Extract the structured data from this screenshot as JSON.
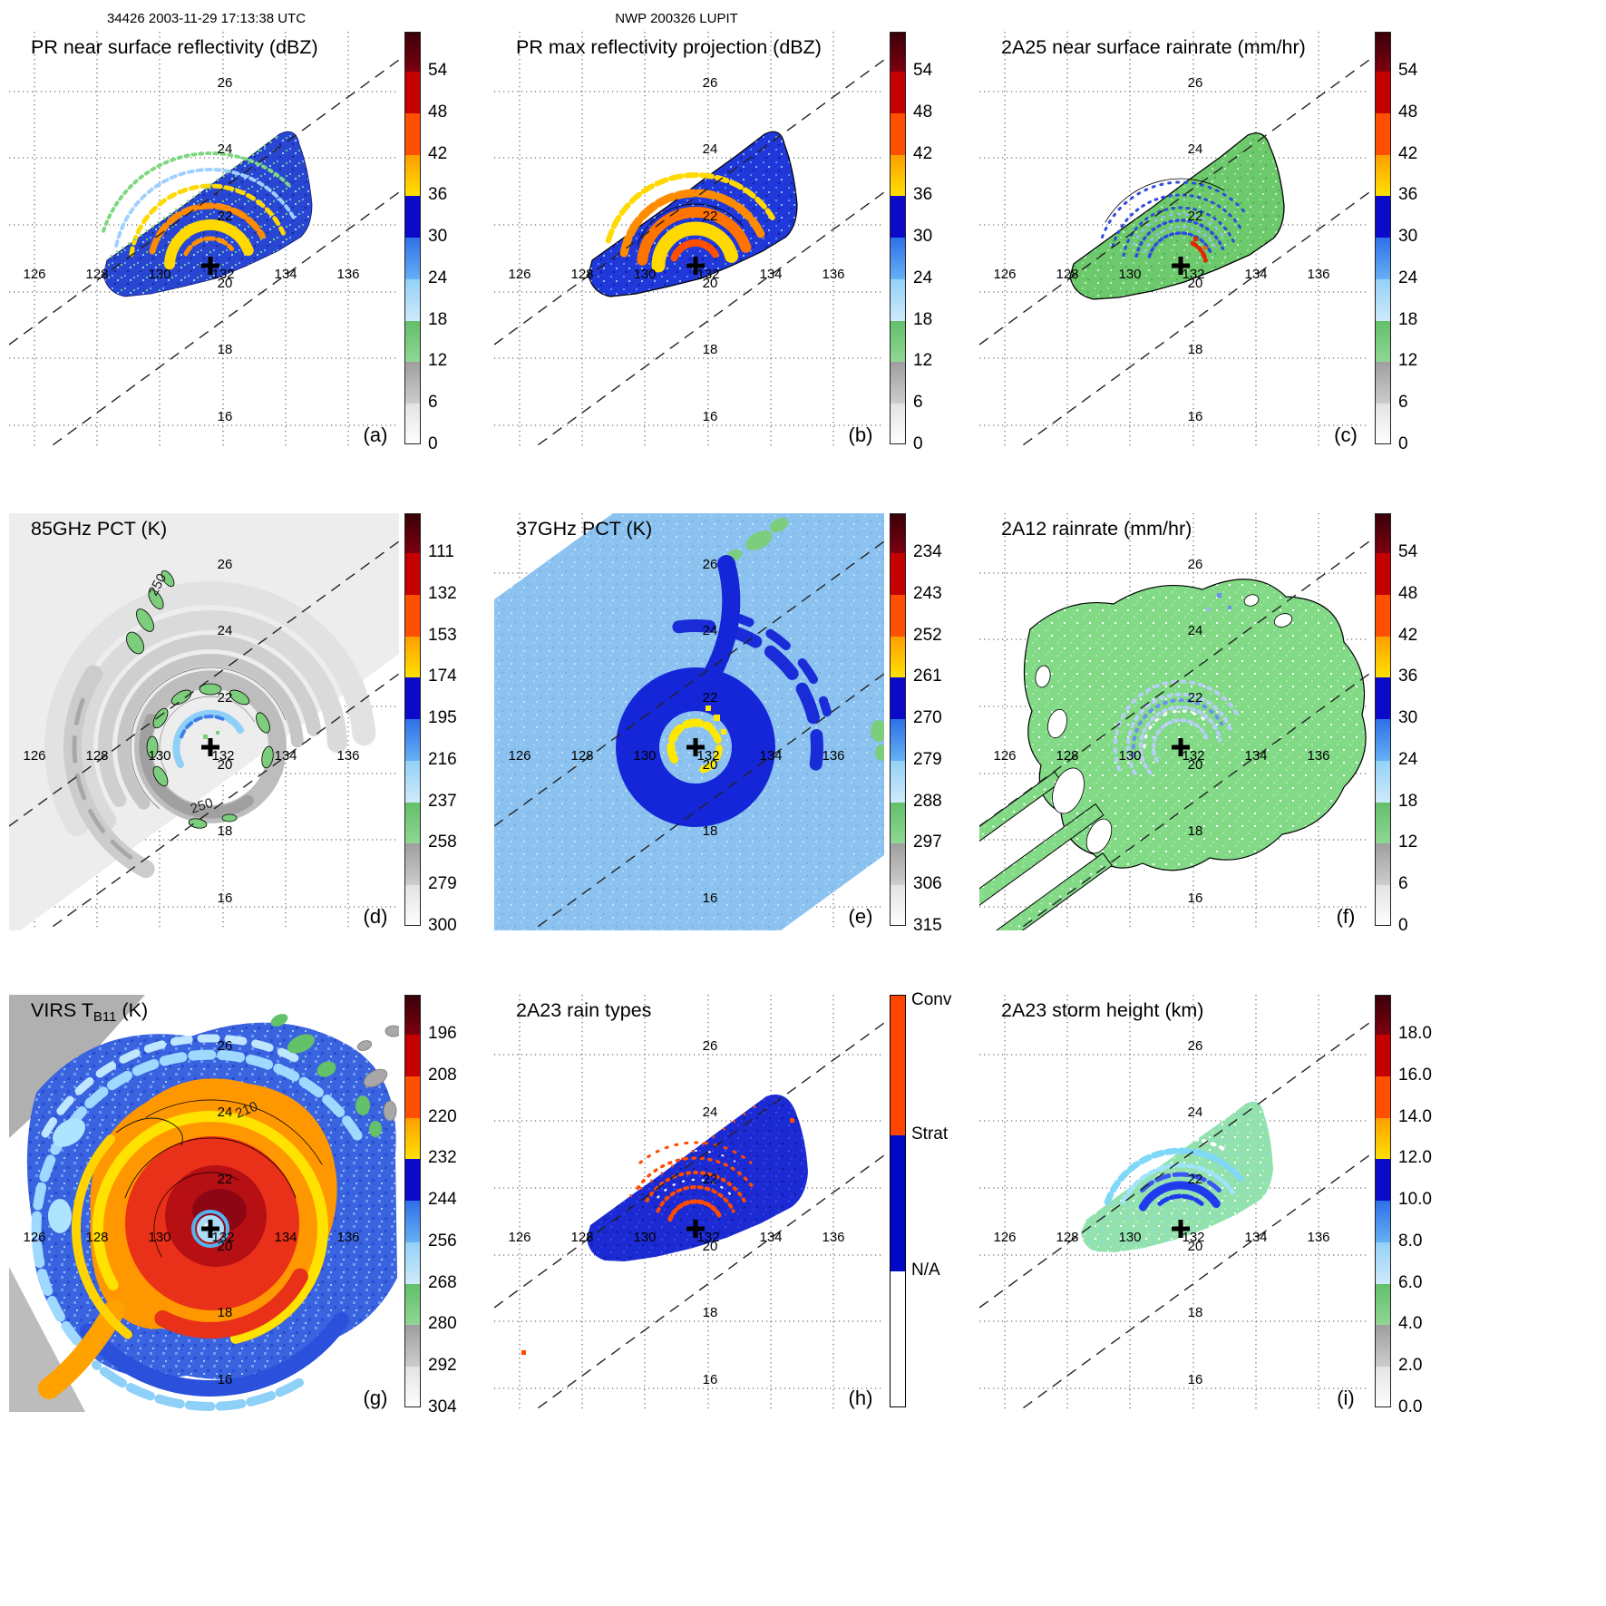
{
  "header": {
    "orbit": "34426 2003-11-29 17:13:38 UTC",
    "storm": "NWP 200326 LUPIT"
  },
  "axes": {
    "lon": [
      "126",
      "128",
      "130",
      "132",
      "134",
      "136"
    ],
    "lat": [
      "26",
      "24",
      "22",
      "20",
      "18",
      "16"
    ]
  },
  "colorbars": {
    "rainbow_segments": [
      "#3a0008|#7e0010",
      "#c40000",
      "#ff4f00",
      "#ff9e00|#ffe100",
      "#0a0ac8",
      "#2f6fe8|#66b0f4",
      "#93d1f7|#cfeafb",
      "#63bf6a|#8fd794",
      "#9e9e9e|#cccccc",
      "#e3e3e3|#ffffff"
    ]
  },
  "rain_type_bar": {
    "labels": [
      "Conv",
      "Strat",
      "N/A"
    ],
    "colors": [
      "#ff4500",
      "#0008c8",
      "#ffffff"
    ]
  },
  "panels": [
    {
      "id": "a",
      "cbar": "rainbow",
      "title": "PR near surface reflectivity (dBZ)",
      "corner": "(a)",
      "cbar_ticks": [
        "54",
        "48",
        "42",
        "36",
        "30",
        "24",
        "18",
        "12",
        "6",
        "0"
      ]
    },
    {
      "id": "b",
      "cbar": "rainbow",
      "title": "PR max reflectivity projection (dBZ)",
      "corner": "(b)",
      "cbar_ticks": [
        "54",
        "48",
        "42",
        "36",
        "30",
        "24",
        "18",
        "12",
        "6",
        "0"
      ]
    },
    {
      "id": "c",
      "cbar": "rainbow",
      "title": "2A25 near surface rainrate (mm/hr)",
      "corner": "(c)",
      "cbar_ticks": [
        "54",
        "48",
        "42",
        "36",
        "30",
        "24",
        "18",
        "12",
        "6",
        "0"
      ]
    },
    {
      "id": "d",
      "cbar": "rainbow",
      "title": "85GHz PCT (K)",
      "corner": "(d)",
      "cbar_ticks": [
        "111",
        "132",
        "153",
        "174",
        "195",
        "216",
        "237",
        "258",
        "279",
        "300"
      ],
      "annotations": [
        "250",
        "250"
      ]
    },
    {
      "id": "e",
      "cbar": "rainbow",
      "title": "37GHz PCT (K)",
      "corner": "(e)",
      "cbar_ticks": [
        "234",
        "243",
        "252",
        "261",
        "270",
        "279",
        "288",
        "297",
        "306",
        "315"
      ]
    },
    {
      "id": "f",
      "cbar": "rainbow",
      "title": "2A12 rainrate (mm/hr)",
      "corner": "(f)",
      "cbar_ticks": [
        "54",
        "48",
        "42",
        "36",
        "30",
        "24",
        "18",
        "12",
        "6",
        "0"
      ]
    },
    {
      "id": "g",
      "cbar": "rainbow",
      "title_main": "VIRS T",
      "title_sub": "B11",
      "title_end": " (K)",
      "corner": "(g)",
      "cbar_ticks": [
        "196",
        "208",
        "220",
        "232",
        "244",
        "256",
        "268",
        "280",
        "292",
        "304"
      ],
      "annotations": [
        "210"
      ]
    },
    {
      "id": "h",
      "cbar": "raintype",
      "title": "2A23 rain types",
      "corner": "(h)"
    },
    {
      "id": "i",
      "cbar": "rainbow",
      "title": "2A23 storm height (km)",
      "corner": "(i)",
      "cbar_ticks": [
        "18.0",
        "16.0",
        "14.0",
        "12.0",
        "10.0",
        "8.0",
        "6.0",
        "4.0",
        "2.0",
        "0.0"
      ]
    }
  ],
  "chart_data": [
    {
      "panel": "a",
      "type": "heatmap",
      "title": "PR near surface reflectivity (dBZ)",
      "units": "dBZ",
      "lon_ticks": [
        126,
        128,
        130,
        132,
        134,
        136
      ],
      "lat_ticks": [
        16,
        18,
        20,
        22,
        24,
        26
      ],
      "colorbar_ticks": [
        54,
        48,
        42,
        36,
        30,
        24,
        18,
        12,
        6,
        0
      ],
      "storm_center_lonlat": [
        131.6,
        20.7
      ]
    },
    {
      "panel": "b",
      "type": "heatmap",
      "title": "PR max reflectivity projection (dBZ)",
      "units": "dBZ",
      "lon_ticks": [
        126,
        128,
        130,
        132,
        134,
        136
      ],
      "lat_ticks": [
        16,
        18,
        20,
        22,
        24,
        26
      ],
      "colorbar_ticks": [
        54,
        48,
        42,
        36,
        30,
        24,
        18,
        12,
        6,
        0
      ],
      "storm_center_lonlat": [
        131.6,
        20.7
      ]
    },
    {
      "panel": "c",
      "type": "heatmap",
      "title": "2A25 near surface rainrate (mm/hr)",
      "units": "mm/hr",
      "lon_ticks": [
        126,
        128,
        130,
        132,
        134,
        136
      ],
      "lat_ticks": [
        16,
        18,
        20,
        22,
        24,
        26
      ],
      "colorbar_ticks": [
        54,
        48,
        42,
        36,
        30,
        24,
        18,
        12,
        6,
        0
      ],
      "storm_center_lonlat": [
        131.6,
        20.7
      ]
    },
    {
      "panel": "d",
      "type": "heatmap",
      "title": "85GHz PCT (K)",
      "units": "K",
      "lon_ticks": [
        126,
        128,
        130,
        132,
        134,
        136
      ],
      "lat_ticks": [
        16,
        18,
        20,
        22,
        24,
        26
      ],
      "colorbar_ticks": [
        111,
        132,
        153,
        174,
        195,
        216,
        237,
        258,
        279,
        300
      ],
      "contour_labels": [
        250,
        250
      ],
      "storm_center_lonlat": [
        131.6,
        20.7
      ]
    },
    {
      "panel": "e",
      "type": "heatmap",
      "title": "37GHz PCT (K)",
      "units": "K",
      "lon_ticks": [
        126,
        128,
        130,
        132,
        134,
        136
      ],
      "lat_ticks": [
        16,
        18,
        20,
        22,
        24,
        26
      ],
      "colorbar_ticks": [
        234,
        243,
        252,
        261,
        270,
        279,
        288,
        297,
        306,
        315
      ],
      "storm_center_lonlat": [
        131.6,
        20.7
      ]
    },
    {
      "panel": "f",
      "type": "heatmap",
      "title": "2A12 rainrate (mm/hr)",
      "units": "mm/hr",
      "lon_ticks": [
        126,
        128,
        130,
        132,
        134,
        136
      ],
      "lat_ticks": [
        16,
        18,
        20,
        22,
        24,
        26
      ],
      "colorbar_ticks": [
        54,
        48,
        42,
        36,
        30,
        24,
        18,
        12,
        6,
        0
      ],
      "storm_center_lonlat": [
        131.6,
        20.7
      ]
    },
    {
      "panel": "g",
      "type": "heatmap",
      "title": "VIRS TB11 (K)",
      "units": "K",
      "lon_ticks": [
        126,
        128,
        130,
        132,
        134,
        136
      ],
      "lat_ticks": [
        16,
        18,
        20,
        22,
        24,
        26
      ],
      "colorbar_ticks": [
        196,
        208,
        220,
        232,
        244,
        256,
        268,
        280,
        292,
        304
      ],
      "contour_labels": [
        210
      ],
      "storm_center_lonlat": [
        131.6,
        20.7
      ]
    },
    {
      "panel": "h",
      "type": "categorical-map",
      "title": "2A23 rain types",
      "lon_ticks": [
        126,
        128,
        130,
        132,
        134,
        136
      ],
      "lat_ticks": [
        16,
        18,
        20,
        22,
        24,
        26
      ],
      "categories": [
        "Conv",
        "Strat",
        "N/A"
      ],
      "storm_center_lonlat": [
        131.6,
        20.7
      ]
    },
    {
      "panel": "i",
      "type": "heatmap",
      "title": "2A23 storm height (km)",
      "units": "km",
      "lon_ticks": [
        126,
        128,
        130,
        132,
        134,
        136
      ],
      "lat_ticks": [
        16,
        18,
        20,
        22,
        24,
        26
      ],
      "colorbar_ticks": [
        18,
        16,
        14,
        12,
        10,
        8,
        6,
        4,
        2,
        0
      ],
      "storm_center_lonlat": [
        131.6,
        20.7
      ]
    }
  ]
}
